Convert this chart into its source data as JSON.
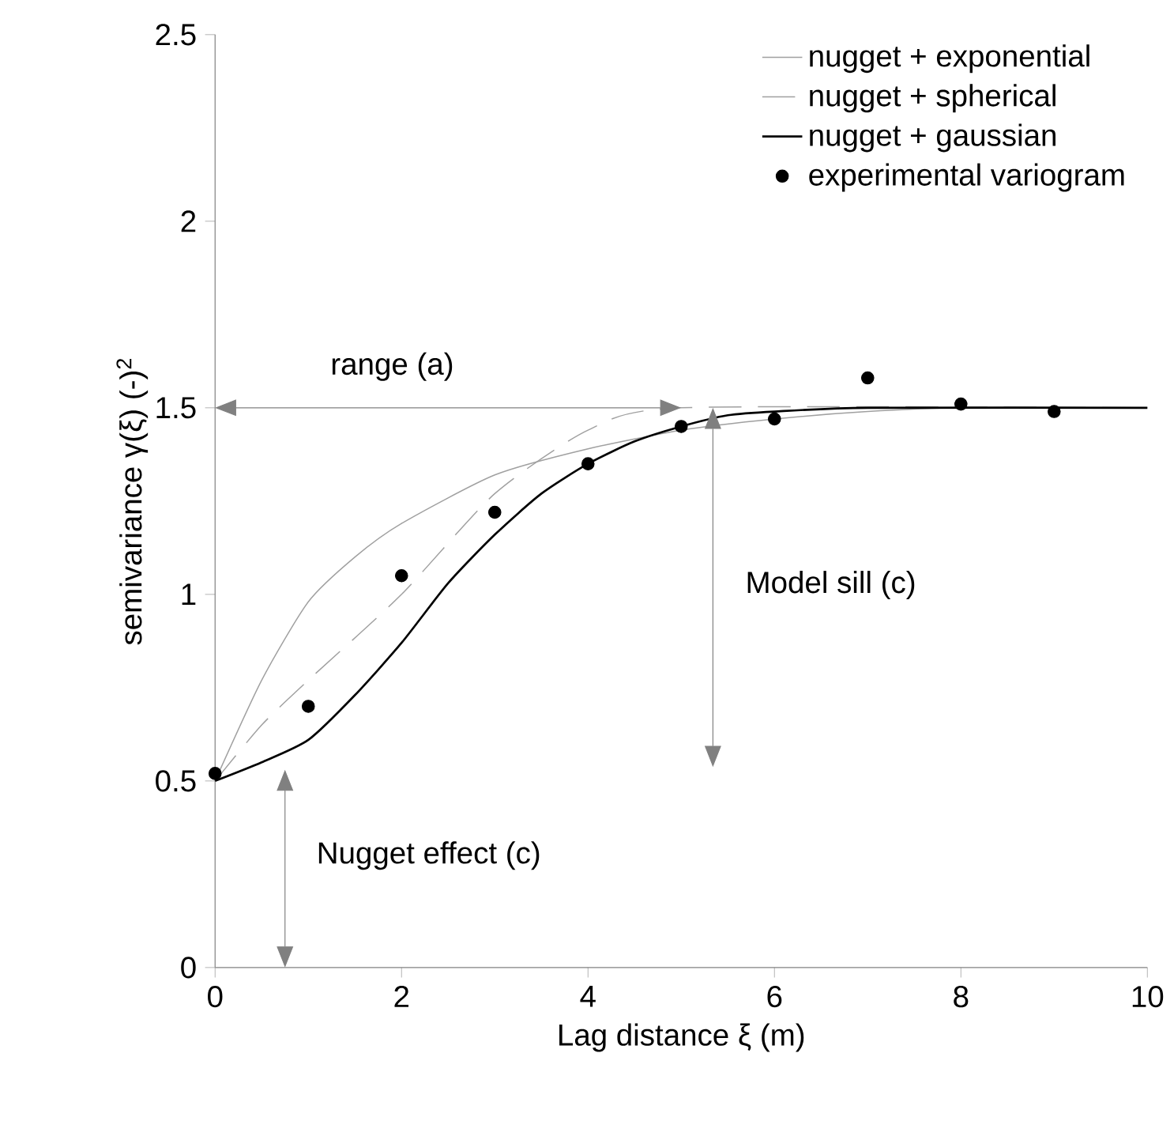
{
  "chart_data": {
    "type": "line",
    "xlabel": "Lag distance ξ (m)",
    "ylabel": "semivariance γ(ξ)  (-)$^{2}$",
    "xlim": [
      0,
      10
    ],
    "ylim": [
      0,
      2.5
    ],
    "xticks": [
      0,
      2,
      4,
      6,
      8,
      10
    ],
    "yticks": [
      0,
      0.5,
      1,
      1.5,
      2,
      2.5
    ],
    "legend": "top right",
    "grid": false,
    "marker": "none",
    "series": [
      {
        "name": "nugget + exponential",
        "color": "#a0a0a0",
        "line_style": "solid",
        "x": [
          0,
          0.5,
          1,
          1.5,
          2,
          3,
          4,
          5,
          6,
          7,
          8,
          10
        ],
        "values": [
          0.5,
          0.77,
          0.98,
          1.1,
          1.19,
          1.32,
          1.39,
          1.44,
          1.47,
          1.49,
          1.5,
          1.5
        ]
      },
      {
        "name": "nugget + spherical",
        "color": "#a0a0a0",
        "line_style": "dashed",
        "x": [
          0,
          0.5,
          1,
          2,
          3,
          4,
          5,
          10
        ],
        "values": [
          0.5,
          0.65,
          0.77,
          1.0,
          1.27,
          1.44,
          1.5,
          1.5
        ]
      },
      {
        "name": "nugget + gaussian",
        "color": "#000000",
        "line_style": "solid",
        "x": [
          0,
          0.5,
          1,
          1.5,
          2,
          2.5,
          3,
          3.5,
          4,
          4.5,
          5,
          5.5,
          6,
          7,
          10
        ],
        "values": [
          0.5,
          0.55,
          0.61,
          0.73,
          0.87,
          1.03,
          1.16,
          1.27,
          1.35,
          1.41,
          1.45,
          1.48,
          1.49,
          1.5,
          1.5
        ]
      },
      {
        "name": "experimental variogram",
        "type": "scatter",
        "color": "#000000",
        "marker": "circle",
        "x": [
          0,
          1,
          2,
          3,
          4,
          5,
          6,
          7,
          8,
          9
        ],
        "values": [
          0.52,
          0.7,
          1.05,
          1.22,
          1.35,
          1.45,
          1.47,
          1.58,
          1.51,
          1.49
        ]
      }
    ],
    "annotations": [
      "range (a)",
      "Model sill (c)",
      "Nugget effect (c)"
    ]
  }
}
